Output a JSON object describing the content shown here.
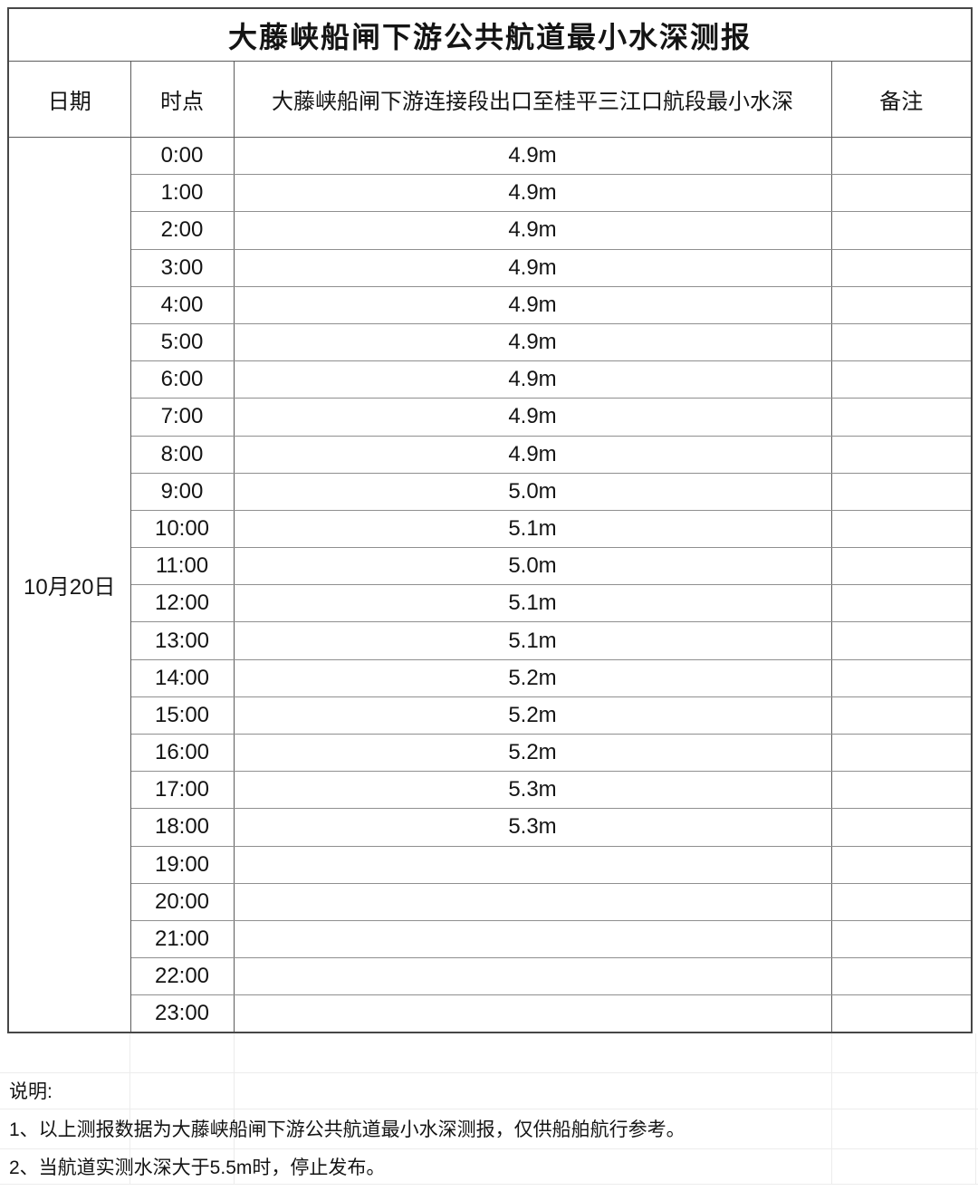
{
  "title": "大藤峡船闸下游公共航道最小水深测报",
  "table": {
    "headers": {
      "date": "日期",
      "time": "时点",
      "depth": "大藤峡船闸下游连接段出口至桂平三江口航段最小水深",
      "remark": "备注"
    },
    "date_label": "10月20日",
    "rows": [
      {
        "time": "0:00",
        "depth": "4.9m",
        "remark": ""
      },
      {
        "time": "1:00",
        "depth": "4.9m",
        "remark": ""
      },
      {
        "time": "2:00",
        "depth": "4.9m",
        "remark": ""
      },
      {
        "time": "3:00",
        "depth": "4.9m",
        "remark": ""
      },
      {
        "time": "4:00",
        "depth": "4.9m",
        "remark": ""
      },
      {
        "time": "5:00",
        "depth": "4.9m",
        "remark": ""
      },
      {
        "time": "6:00",
        "depth": "4.9m",
        "remark": ""
      },
      {
        "time": "7:00",
        "depth": "4.9m",
        "remark": ""
      },
      {
        "time": "8:00",
        "depth": "4.9m",
        "remark": ""
      },
      {
        "time": "9:00",
        "depth": "5.0m",
        "remark": ""
      },
      {
        "time": "10:00",
        "depth": "5.1m",
        "remark": ""
      },
      {
        "time": "11:00",
        "depth": "5.0m",
        "remark": ""
      },
      {
        "time": "12:00",
        "depth": "5.1m",
        "remark": ""
      },
      {
        "time": "13:00",
        "depth": "5.1m",
        "remark": ""
      },
      {
        "time": "14:00",
        "depth": "5.2m",
        "remark": ""
      },
      {
        "time": "15:00",
        "depth": "5.2m",
        "remark": ""
      },
      {
        "time": "16:00",
        "depth": "5.2m",
        "remark": ""
      },
      {
        "time": "17:00",
        "depth": "5.3m",
        "remark": ""
      },
      {
        "time": "18:00",
        "depth": "5.3m",
        "remark": ""
      },
      {
        "time": "19:00",
        "depth": "",
        "remark": ""
      },
      {
        "time": "20:00",
        "depth": "",
        "remark": ""
      },
      {
        "time": "21:00",
        "depth": "",
        "remark": ""
      },
      {
        "time": "22:00",
        "depth": "",
        "remark": ""
      },
      {
        "time": "23:00",
        "depth": "",
        "remark": ""
      }
    ]
  },
  "notes": {
    "label": "说明:",
    "items": [
      "1、以上测报数据为大藤峡船闸下游公共航道最小水深测报，仅供船舶航行参考。",
      "2、当航道实测水深大于5.5m时，停止发布。"
    ]
  },
  "colors": {
    "table_border": "#474747",
    "cell_line": "#5c5c5c",
    "row_line": "#8f8f8f",
    "faint_gridline": "#ececec",
    "text": "#141414",
    "background": "#ffffff"
  }
}
